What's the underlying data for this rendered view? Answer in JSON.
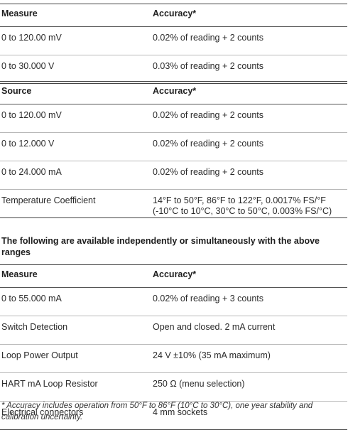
{
  "measure_table": {
    "header": {
      "col1": "Measure",
      "col2": "Accuracy*"
    },
    "rows": [
      {
        "label": "0 to 120.00 mV",
        "value": "0.02% of reading + 2 counts"
      },
      {
        "label": "0 to 30.000 V",
        "value": "0.03% of reading + 2 counts"
      }
    ]
  },
  "source_table": {
    "header": {
      "col1": "Source",
      "col2": "Accuracy*"
    },
    "rows": [
      {
        "label": "0 to 120.00 mV",
        "value": "0.02% of reading + 2 counts"
      },
      {
        "label": "0 to 12.000 V",
        "value": "0.02% of reading + 2 counts"
      },
      {
        "label": "0 to 24.000 mA",
        "value": "0.02% of reading + 2 counts"
      },
      {
        "label": "Temperature Coefficient",
        "value_line1": "14°F to 50°F, 86°F to 122°F, 0.0017% FS/°F",
        "value_line2": "(-10°C to 10°C, 30°C to 50°C, 0.003% FS/°C)"
      }
    ]
  },
  "note_heading": "The following are available independently or simultaneously with the above ranges",
  "additional_table": {
    "header": {
      "col1": "Measure",
      "col2": "Accuracy*"
    },
    "rows": [
      {
        "label": "0 to 55.000 mA",
        "value": "0.02% of reading + 3 counts"
      },
      {
        "label": "Switch Detection",
        "value": "Open and closed. 2 mA current"
      },
      {
        "label": "Loop Power Output",
        "value": "24 V ±10% (35 mA maximum)"
      },
      {
        "label": "HART mA Loop Resistor",
        "value": "250 Ω (menu selection)"
      },
      {
        "label": "Electrical connectors",
        "value": "4 mm sockets"
      }
    ]
  },
  "footnote": "* Accuracy includes operation from 50°F to 86°F (10°C to 30°C), one year stability and calibration uncertainty."
}
